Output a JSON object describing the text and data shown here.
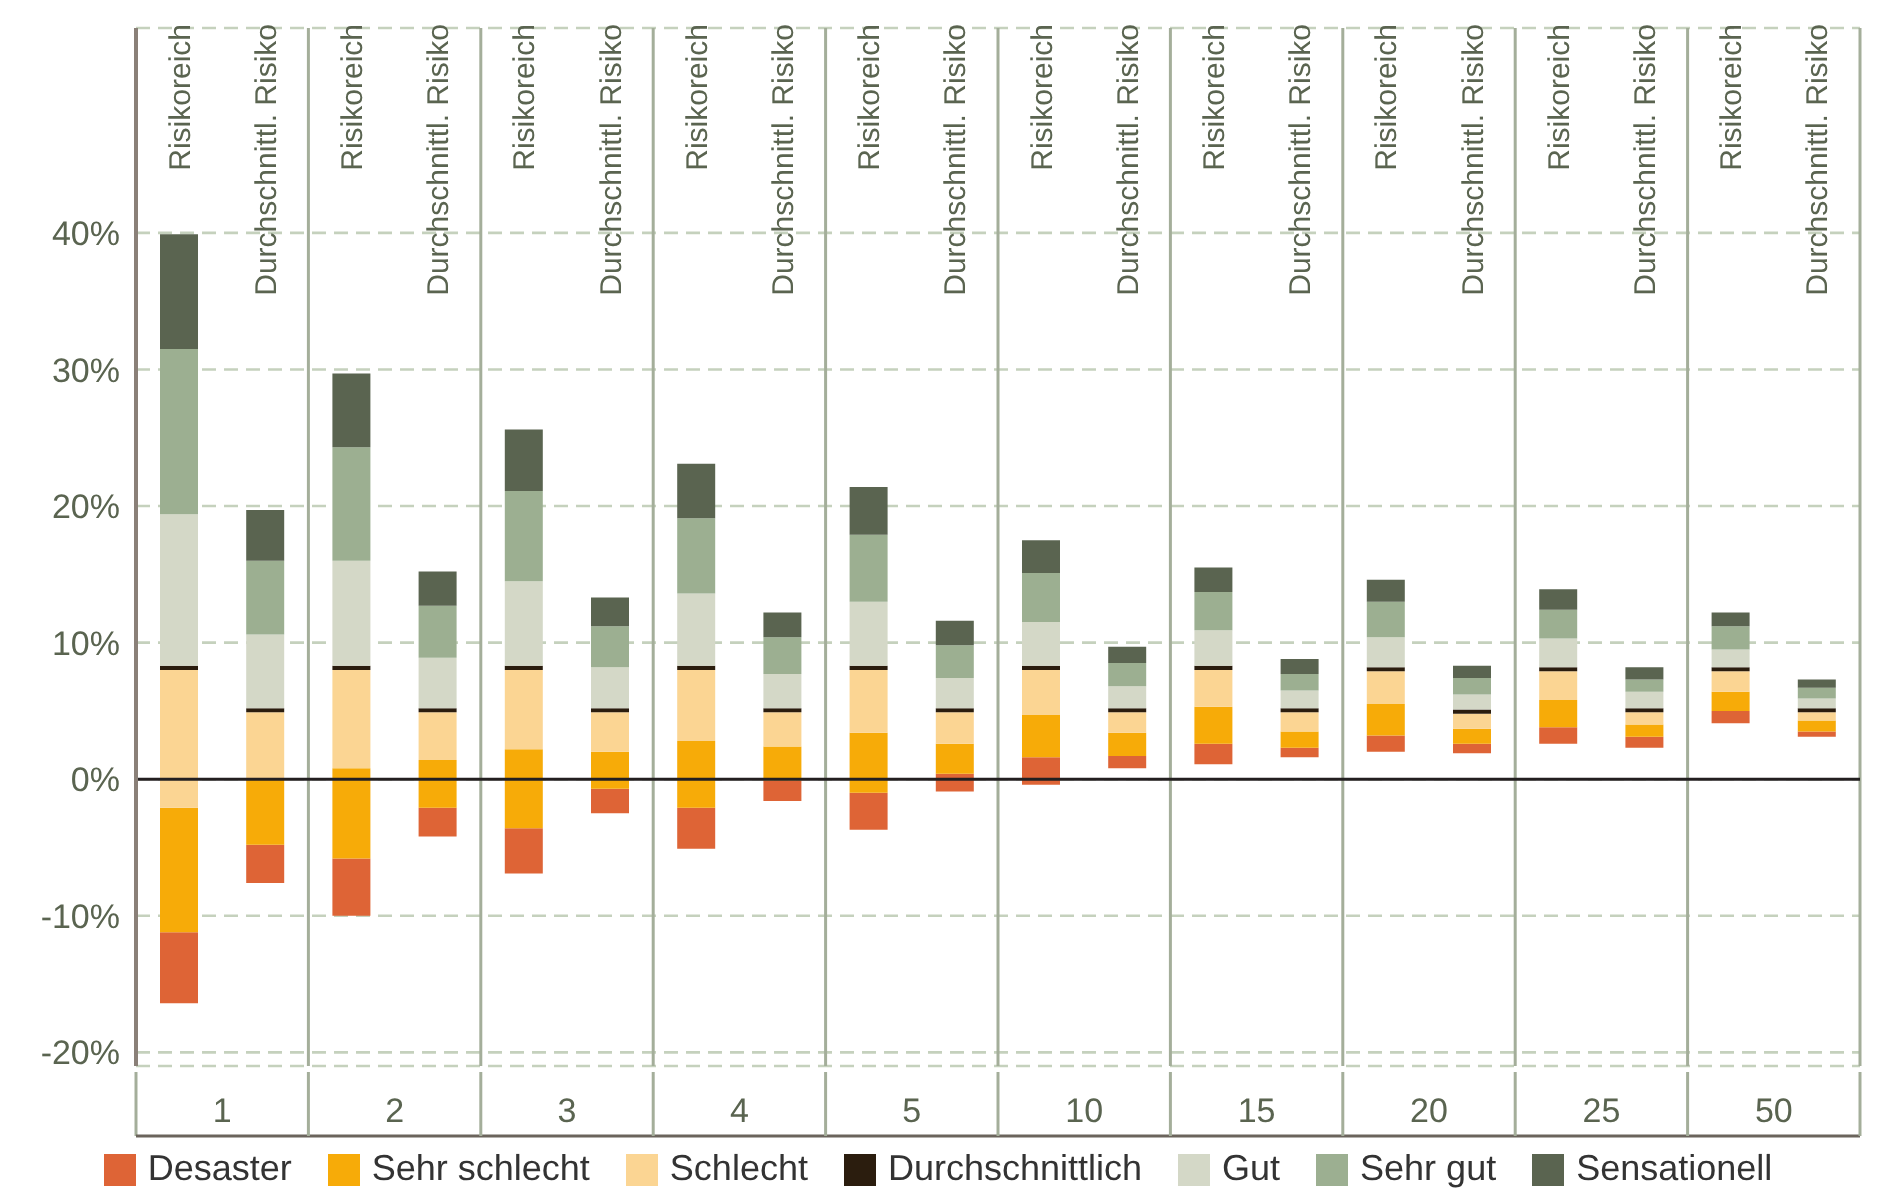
{
  "chart_data": {
    "type": "bar",
    "categories": [
      "Risikoreich",
      "Durchschnittl. Risiko",
      "Risikoreich",
      "Durchschnittl. Risiko",
      "Risikoreich",
      "Durchschnittl. Risiko",
      "Risikoreich",
      "Durchschnittl. Risiko",
      "Risikoreich",
      "Durchschnittl. Risiko",
      "Risikoreich",
      "Durchschnittl. Risiko",
      "Risikoreich",
      "Durchschnittl. Risiko",
      "Risikoreich",
      "Durchschnittl. Risiko",
      "Risikoreich",
      "Durchschnittl. Risiko",
      "Risikoreich",
      "Durchschnittl. Risiko"
    ],
    "series": [
      {
        "name": "Desaster",
        "color": "#de6436",
        "base": [
          -16.4,
          -7.6,
          -10.0,
          -4.2,
          -6.9,
          -2.5,
          -5.1,
          -1.6,
          -3.7,
          -0.9,
          -0.4,
          0.8,
          1.1,
          1.6,
          2.0,
          1.9,
          2.6,
          2.3,
          4.1,
          3.1
        ],
        "values": [
          5.2,
          2.8,
          4.2,
          2.1,
          3.3,
          1.8,
          3.0,
          1.5,
          2.7,
          1.3,
          2.0,
          0.9,
          1.5,
          0.7,
          1.2,
          0.7,
          1.2,
          0.8,
          0.9,
          0.4
        ]
      },
      {
        "name": "Sehr schlecht",
        "color": "#f7ab08",
        "base": [
          -11.2,
          -4.8,
          -5.8,
          -2.1,
          -3.6,
          -0.7,
          -2.1,
          -0.1,
          -1.0,
          0.4,
          1.6,
          1.7,
          2.6,
          2.3,
          3.2,
          2.6,
          3.8,
          3.1,
          5.0,
          3.5
        ],
        "values": [
          9.1,
          4.8,
          6.6,
          3.5,
          5.8,
          2.7,
          4.9,
          2.5,
          4.4,
          2.2,
          3.1,
          1.7,
          2.7,
          1.2,
          2.3,
          1.1,
          2.0,
          0.9,
          1.4,
          0.8
        ]
      },
      {
        "name": "Schlecht",
        "color": "#fbd593",
        "base": [
          -2.1,
          0.0,
          0.8,
          1.4,
          2.2,
          2.0,
          2.8,
          2.4,
          3.4,
          2.6,
          4.7,
          3.4,
          5.3,
          3.5,
          5.5,
          3.7,
          5.8,
          4.0,
          6.4,
          4.3
        ],
        "values": [
          10.1,
          4.9,
          7.2,
          3.5,
          5.8,
          2.9,
          5.2,
          2.5,
          4.6,
          2.3,
          3.3,
          1.5,
          2.7,
          1.4,
          2.4,
          1.1,
          2.1,
          0.9,
          1.5,
          0.6
        ]
      },
      {
        "name": "Durchschnittlich",
        "color": "#2b1d0e",
        "base": [
          8.0,
          4.9,
          8.0,
          4.9,
          8.0,
          4.9,
          8.0,
          4.9,
          8.0,
          4.9,
          8.0,
          4.9,
          8.0,
          4.9,
          7.9,
          4.8,
          7.9,
          4.9,
          7.9,
          4.9
        ],
        "values": [
          0.3,
          0.3,
          0.3,
          0.3,
          0.3,
          0.3,
          0.3,
          0.3,
          0.3,
          0.3,
          0.3,
          0.3,
          0.3,
          0.3,
          0.3,
          0.3,
          0.3,
          0.3,
          0.3,
          0.3
        ]
      },
      {
        "name": "Gut",
        "color": "#d4d8c7",
        "base": [
          8.3,
          5.2,
          8.3,
          5.2,
          8.3,
          5.2,
          8.3,
          5.2,
          8.3,
          5.2,
          8.3,
          5.2,
          8.3,
          5.2,
          8.2,
          5.1,
          8.2,
          5.2,
          8.2,
          5.2
        ],
        "values": [
          11.1,
          5.4,
          7.7,
          3.7,
          6.2,
          3.0,
          5.3,
          2.5,
          4.7,
          2.2,
          3.2,
          1.6,
          2.6,
          1.3,
          2.2,
          1.1,
          2.1,
          1.2,
          1.3,
          0.7
        ]
      },
      {
        "name": "Sehr gut",
        "color": "#9caf91",
        "base": [
          19.4,
          10.6,
          16.0,
          8.9,
          14.5,
          8.2,
          13.6,
          7.7,
          13.0,
          7.4,
          11.5,
          6.8,
          10.9,
          6.5,
          10.4,
          6.2,
          10.3,
          6.4,
          9.5,
          5.9
        ],
        "values": [
          12.1,
          5.4,
          8.3,
          3.8,
          6.6,
          3.0,
          5.5,
          2.7,
          4.9,
          2.4,
          3.6,
          1.7,
          2.8,
          1.2,
          2.6,
          1.2,
          2.1,
          0.9,
          1.7,
          0.8
        ]
      },
      {
        "name": "Sensationell",
        "color": "#5a6450",
        "base": [
          31.5,
          16.0,
          24.3,
          12.7,
          21.1,
          11.2,
          19.1,
          10.4,
          17.9,
          9.8,
          15.1,
          8.5,
          13.7,
          7.7,
          13.0,
          7.4,
          12.4,
          7.3,
          11.2,
          6.7
        ],
        "values": [
          8.4,
          3.7,
          5.4,
          2.5,
          4.5,
          2.1,
          4.0,
          1.8,
          3.5,
          1.8,
          2.4,
          1.2,
          1.8,
          1.1,
          1.6,
          0.9,
          1.5,
          0.9,
          1.0,
          0.6
        ]
      }
    ],
    "annotations": [
      "1",
      "2",
      "3",
      "4",
      "5",
      "10",
      "15",
      "20",
      "25",
      "50"
    ],
    "ylim": [
      -21,
      55
    ],
    "yticks": [
      {
        "value": -20,
        "label": "-20%"
      },
      {
        "value": -10,
        "label": "-10%"
      },
      {
        "value": 0,
        "label": "0%"
      },
      {
        "value": 10,
        "label": "10%"
      },
      {
        "value": 20,
        "label": "20%"
      },
      {
        "value": 30,
        "label": "30%"
      },
      {
        "value": 40,
        "label": "40%"
      }
    ],
    "ref_lines": [
      {
        "axis": "y",
        "value": 0,
        "color": "#231f20"
      }
    ],
    "grid": true,
    "legend": "bottom"
  }
}
